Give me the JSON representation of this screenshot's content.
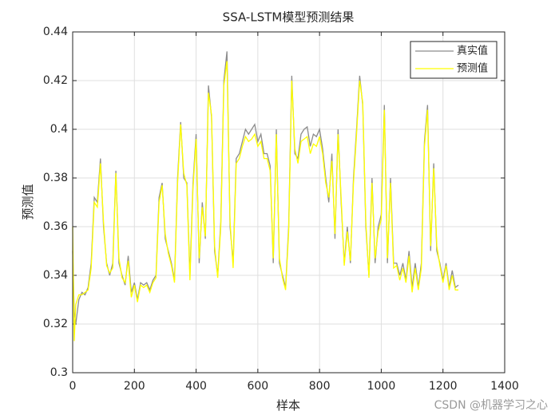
{
  "chart_data": {
    "type": "line",
    "title": "SSA-LSTM模型预测结果",
    "xlabel": "样本",
    "ylabel": "预测值",
    "watermark": "CSDN @机器学习之心",
    "x": [
      0,
      5,
      10,
      20,
      30,
      40,
      50,
      60,
      70,
      80,
      90,
      100,
      110,
      120,
      130,
      140,
      150,
      160,
      170,
      180,
      190,
      200,
      210,
      220,
      230,
      240,
      250,
      260,
      270,
      280,
      290,
      300,
      310,
      320,
      330,
      340,
      350,
      360,
      370,
      380,
      390,
      400,
      410,
      420,
      430,
      440,
      450,
      460,
      470,
      480,
      490,
      500,
      510,
      520,
      530,
      540,
      550,
      560,
      570,
      580,
      590,
      600,
      610,
      620,
      630,
      640,
      650,
      660,
      670,
      680,
      690,
      700,
      710,
      720,
      730,
      740,
      750,
      760,
      770,
      780,
      790,
      800,
      810,
      820,
      830,
      840,
      850,
      860,
      870,
      880,
      890,
      900,
      910,
      920,
      930,
      940,
      950,
      960,
      970,
      980,
      990,
      1000,
      1010,
      1020,
      1030,
      1040,
      1050,
      1060,
      1070,
      1080,
      1090,
      1100,
      1110,
      1120,
      1130,
      1140,
      1150,
      1160,
      1170,
      1180,
      1190,
      1200,
      1210,
      1220,
      1230,
      1240,
      1250
    ],
    "series": [
      {
        "name": "真实值",
        "color": "#8c8c8c",
        "values": [
          0.35,
          0.325,
          0.32,
          0.33,
          0.333,
          0.332,
          0.335,
          0.345,
          0.372,
          0.37,
          0.388,
          0.36,
          0.345,
          0.34,
          0.345,
          0.383,
          0.345,
          0.34,
          0.336,
          0.348,
          0.333,
          0.337,
          0.33,
          0.337,
          0.336,
          0.337,
          0.334,
          0.338,
          0.34,
          0.372,
          0.378,
          0.355,
          0.35,
          0.345,
          0.338,
          0.38,
          0.403,
          0.38,
          0.378,
          0.34,
          0.378,
          0.398,
          0.345,
          0.37,
          0.355,
          0.418,
          0.405,
          0.35,
          0.34,
          0.362,
          0.42,
          0.432,
          0.36,
          0.345,
          0.388,
          0.39,
          0.395,
          0.4,
          0.398,
          0.4,
          0.402,
          0.395,
          0.398,
          0.39,
          0.39,
          0.385,
          0.345,
          0.4,
          0.345,
          0.34,
          0.335,
          0.36,
          0.422,
          0.39,
          0.388,
          0.398,
          0.4,
          0.401,
          0.393,
          0.398,
          0.397,
          0.4,
          0.392,
          0.38,
          0.37,
          0.39,
          0.355,
          0.4,
          0.37,
          0.345,
          0.36,
          0.345,
          0.38,
          0.4,
          0.422,
          0.41,
          0.36,
          0.34,
          0.38,
          0.345,
          0.36,
          0.365,
          0.41,
          0.345,
          0.38,
          0.345,
          0.345,
          0.34,
          0.345,
          0.338,
          0.35,
          0.335,
          0.345,
          0.335,
          0.345,
          0.395,
          0.41,
          0.35,
          0.386,
          0.35,
          0.345,
          0.338,
          0.345,
          0.335,
          0.342,
          0.335,
          0.336
        ]
      },
      {
        "name": "预测值",
        "color": "#ffff00",
        "values": [
          0.36,
          0.313,
          0.328,
          0.332,
          0.332,
          0.333,
          0.334,
          0.343,
          0.37,
          0.368,
          0.386,
          0.362,
          0.344,
          0.341,
          0.343,
          0.382,
          0.347,
          0.339,
          0.337,
          0.346,
          0.331,
          0.336,
          0.329,
          0.336,
          0.335,
          0.336,
          0.333,
          0.337,
          0.339,
          0.37,
          0.377,
          0.357,
          0.349,
          0.344,
          0.337,
          0.378,
          0.402,
          0.382,
          0.377,
          0.338,
          0.376,
          0.396,
          0.347,
          0.368,
          0.356,
          0.415,
          0.406,
          0.352,
          0.339,
          0.36,
          0.418,
          0.428,
          0.362,
          0.343,
          0.386,
          0.388,
          0.393,
          0.397,
          0.395,
          0.396,
          0.398,
          0.393,
          0.395,
          0.388,
          0.388,
          0.383,
          0.347,
          0.398,
          0.347,
          0.339,
          0.334,
          0.358,
          0.42,
          0.392,
          0.386,
          0.395,
          0.396,
          0.397,
          0.39,
          0.394,
          0.393,
          0.397,
          0.39,
          0.378,
          0.372,
          0.387,
          0.357,
          0.398,
          0.372,
          0.344,
          0.358,
          0.346,
          0.378,
          0.398,
          0.42,
          0.411,
          0.362,
          0.339,
          0.378,
          0.347,
          0.358,
          0.363,
          0.408,
          0.347,
          0.378,
          0.343,
          0.344,
          0.338,
          0.343,
          0.337,
          0.348,
          0.333,
          0.343,
          0.334,
          0.343,
          0.393,
          0.408,
          0.352,
          0.384,
          0.352,
          0.344,
          0.337,
          0.344,
          0.334,
          0.34,
          0.334,
          0.334
        ]
      }
    ],
    "xlim": [
      0,
      1400
    ],
    "xticks": [
      0,
      200,
      400,
      600,
      800,
      1000,
      1200,
      1400
    ],
    "ylim": [
      0.3,
      0.44
    ],
    "yticks": [
      0.3,
      0.32,
      0.34,
      0.36,
      0.38,
      0.4,
      0.42,
      0.44
    ],
    "grid": true,
    "legend": "upper right"
  }
}
